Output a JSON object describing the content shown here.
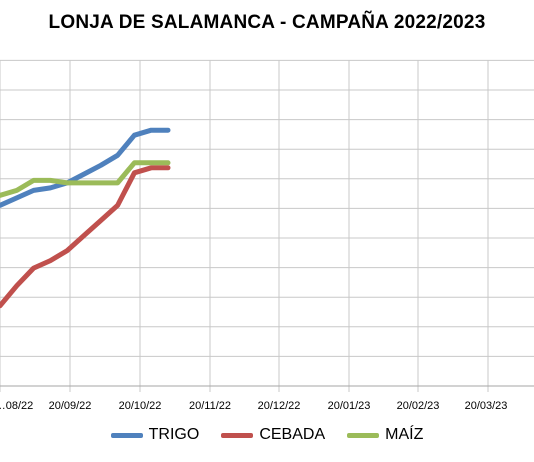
{
  "chart_data": {
    "type": "line",
    "title": "LONJA DE SALAMANCA - CAMPAÑA 2022/2023",
    "xlabel": "",
    "ylabel": "",
    "x_tick_labels": [
      "…08/22",
      "20/09/22",
      "20/10/22",
      "20/11/22",
      "20/12/22",
      "20/01/23",
      "20/02/23",
      "20/03/23"
    ],
    "x": [
      "20/08/22",
      "27/08/22",
      "03/09/22",
      "10/09/22",
      "17/09/22",
      "24/09/22",
      "01/10/22",
      "08/10/22",
      "15/10/22",
      "22/10/22",
      "29/10/22"
    ],
    "series": [
      {
        "name": "TRIGO",
        "color": "#4f81bd",
        "values": [
          7.2,
          7.5,
          7.8,
          7.9,
          8.1,
          8.45,
          8.8,
          9.2,
          10.0,
          10.2,
          10.2
        ]
      },
      {
        "name": "CEBADA",
        "color": "#c0504d",
        "values": [
          3.2,
          4.0,
          4.7,
          5.0,
          5.4,
          6.0,
          6.6,
          7.2,
          8.5,
          8.7,
          8.7
        ]
      },
      {
        "name": "MAÍZ",
        "color": "#9bbb59",
        "values": [
          7.6,
          7.8,
          8.2,
          8.2,
          8.1,
          8.1,
          8.1,
          8.1,
          8.9,
          8.9,
          8.9
        ]
      }
    ],
    "ylim": [
      0,
      13
    ],
    "grid": true,
    "legend_position": "bottom"
  }
}
